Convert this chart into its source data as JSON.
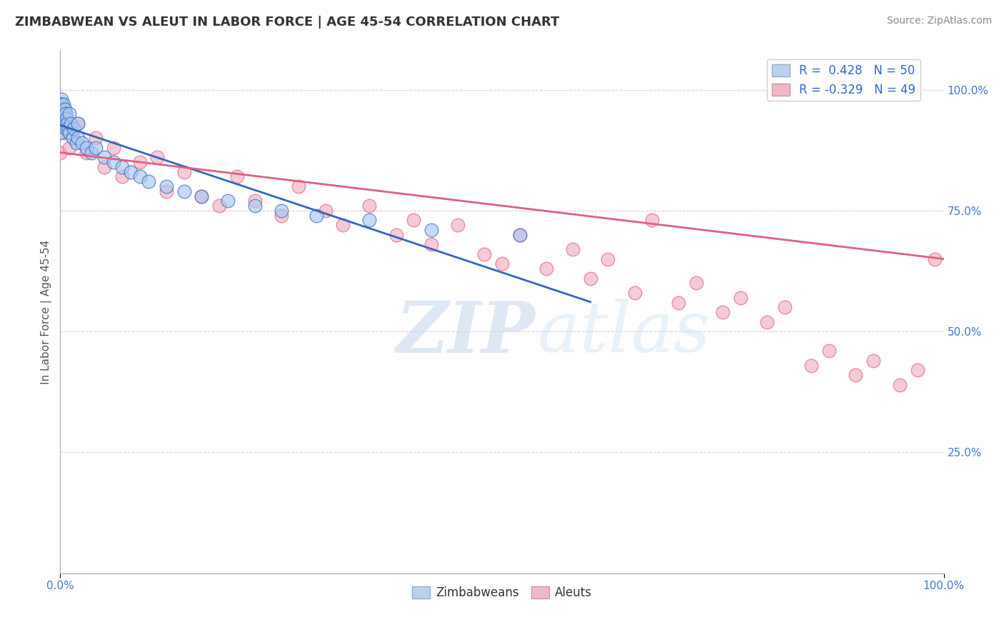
{
  "title": "ZIMBABWEAN VS ALEUT IN LABOR FORCE | AGE 45-54 CORRELATION CHART",
  "source": "Source: ZipAtlas.com",
  "ylabel": "In Labor Force | Age 45-54",
  "ytick_labels": [
    "100.0%",
    "75.0%",
    "50.0%",
    "25.0%"
  ],
  "ytick_positions": [
    1.0,
    0.75,
    0.5,
    0.25
  ],
  "zimbabwean_R": 0.428,
  "zimbabwean_N": 50,
  "aleut_R": -0.329,
  "aleut_N": 49,
  "blue_color": "#a8c8f0",
  "blue_line_color": "#3366bb",
  "pink_color": "#f0b0c0",
  "pink_line_color": "#e06080",
  "legend_blue_fill": "#b8d4f0",
  "legend_pink_fill": "#f0b8c8",
  "watermark_zip": "ZIP",
  "watermark_atlas": "atlas",
  "title_fontsize": 13,
  "source_fontsize": 10,
  "zimbabwean_x": [
    0.0,
    0.0,
    0.0,
    0.0,
    0.0,
    0.001,
    0.001,
    0.001,
    0.002,
    0.002,
    0.002,
    0.003,
    0.003,
    0.004,
    0.004,
    0.005,
    0.005,
    0.006,
    0.006,
    0.007,
    0.008,
    0.009,
    0.01,
    0.01,
    0.012,
    0.014,
    0.015,
    0.018,
    0.02,
    0.02,
    0.025,
    0.03,
    0.035,
    0.04,
    0.05,
    0.06,
    0.07,
    0.08,
    0.09,
    0.1,
    0.12,
    0.14,
    0.16,
    0.19,
    0.22,
    0.25,
    0.29,
    0.35,
    0.42,
    0.52
  ],
  "zimbabwean_y": [
    0.97,
    0.96,
    0.95,
    0.93,
    0.91,
    0.98,
    0.97,
    0.96,
    0.97,
    0.95,
    0.93,
    0.96,
    0.94,
    0.97,
    0.95,
    0.96,
    0.93,
    0.95,
    0.92,
    0.94,
    0.93,
    0.92,
    0.95,
    0.91,
    0.93,
    0.9,
    0.92,
    0.89,
    0.93,
    0.9,
    0.89,
    0.88,
    0.87,
    0.88,
    0.86,
    0.85,
    0.84,
    0.83,
    0.82,
    0.81,
    0.8,
    0.79,
    0.78,
    0.77,
    0.76,
    0.75,
    0.74,
    0.73,
    0.71,
    0.7
  ],
  "aleut_x": [
    0.0,
    0.0,
    0.005,
    0.01,
    0.02,
    0.03,
    0.04,
    0.05,
    0.06,
    0.07,
    0.09,
    0.11,
    0.12,
    0.14,
    0.16,
    0.18,
    0.2,
    0.22,
    0.25,
    0.27,
    0.3,
    0.32,
    0.35,
    0.38,
    0.4,
    0.42,
    0.45,
    0.48,
    0.5,
    0.52,
    0.55,
    0.58,
    0.6,
    0.62,
    0.65,
    0.67,
    0.7,
    0.72,
    0.75,
    0.77,
    0.8,
    0.82,
    0.85,
    0.87,
    0.9,
    0.92,
    0.95,
    0.97,
    0.99
  ],
  "aleut_y": [
    0.87,
    0.95,
    0.91,
    0.88,
    0.93,
    0.87,
    0.9,
    0.84,
    0.88,
    0.82,
    0.85,
    0.86,
    0.79,
    0.83,
    0.78,
    0.76,
    0.82,
    0.77,
    0.74,
    0.8,
    0.75,
    0.72,
    0.76,
    0.7,
    0.73,
    0.68,
    0.72,
    0.66,
    0.64,
    0.7,
    0.63,
    0.67,
    0.61,
    0.65,
    0.58,
    0.73,
    0.56,
    0.6,
    0.54,
    0.57,
    0.52,
    0.55,
    0.43,
    0.46,
    0.41,
    0.44,
    0.39,
    0.42,
    0.65
  ]
}
